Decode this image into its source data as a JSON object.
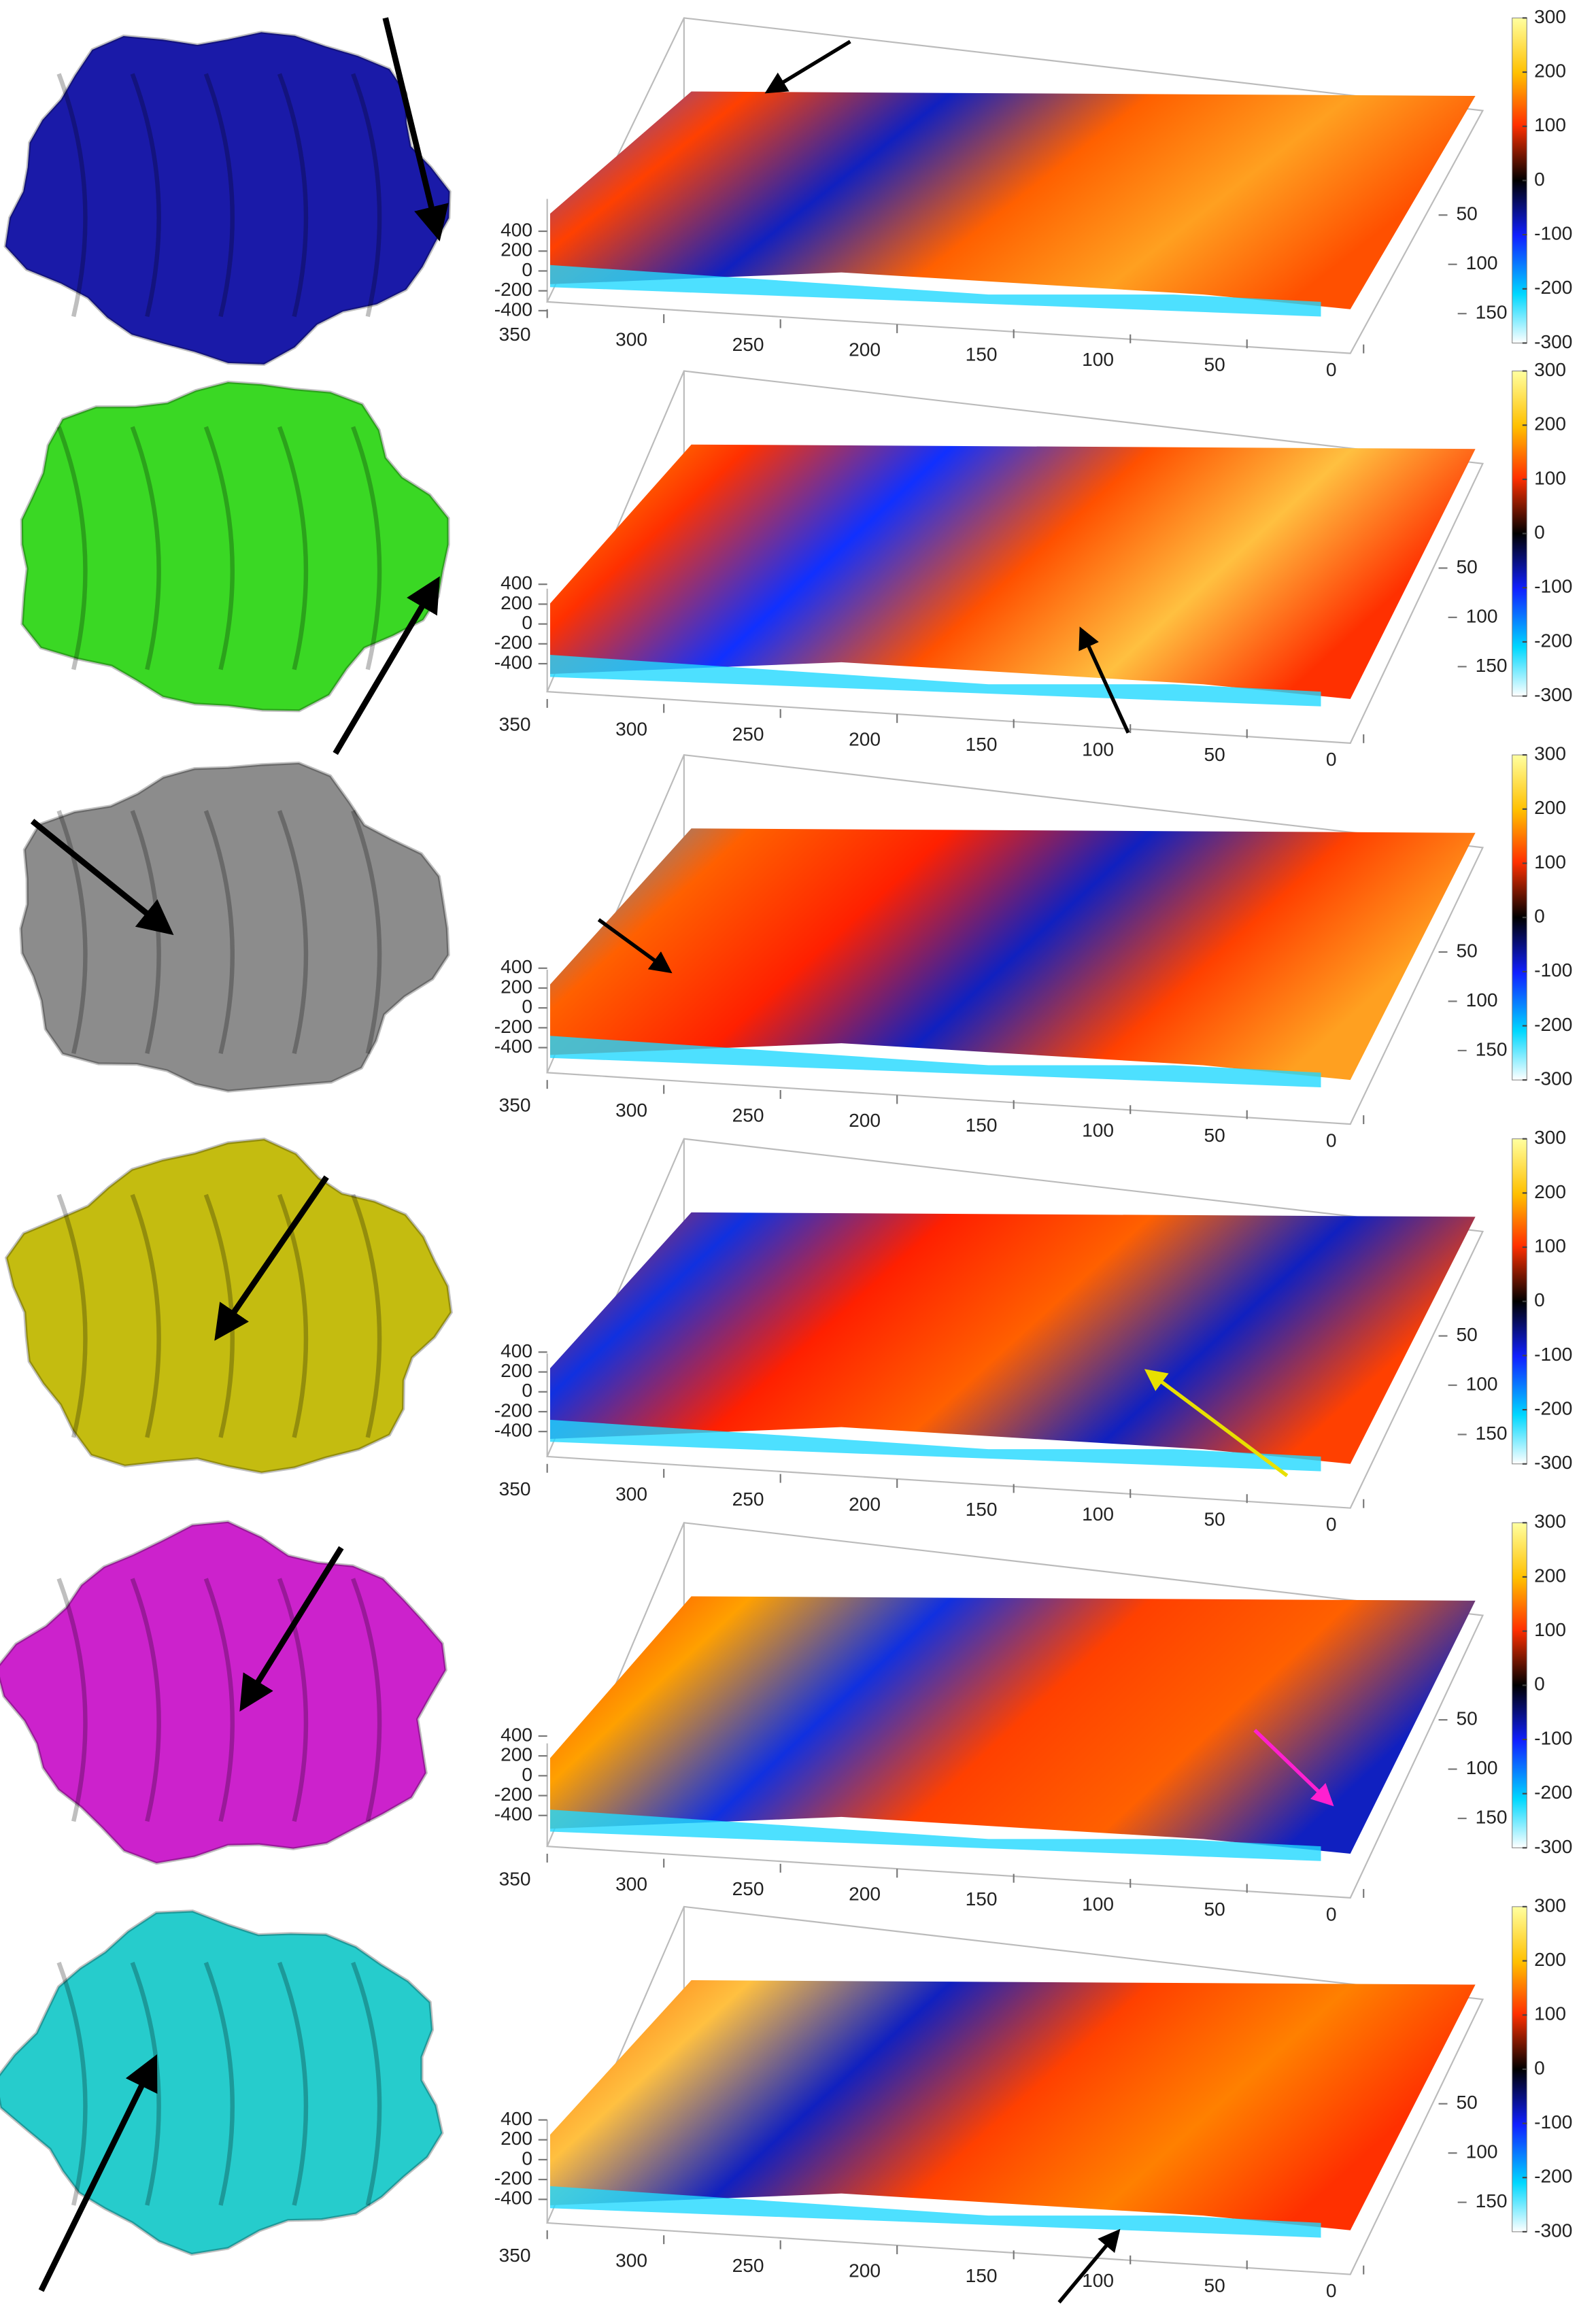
{
  "panels": [
    {
      "zticks": [
        400,
        200,
        0,
        -200,
        -400
      ],
      "xticks": [
        350,
        300,
        250,
        200,
        150,
        100,
        50,
        0
      ],
      "yticks": [
        50,
        100,
        150
      ],
      "colorbar_ticks": [
        300,
        200,
        100,
        0,
        -100,
        -200,
        -300
      ]
    },
    {
      "zticks": [
        400,
        200,
        0,
        -200,
        -400
      ],
      "xticks": [
        350,
        300,
        250,
        200,
        150,
        100,
        50,
        0
      ],
      "yticks": [
        50,
        100,
        150
      ],
      "colorbar_ticks": [
        300,
        200,
        100,
        0,
        -100,
        -200,
        -300
      ]
    },
    {
      "zticks": [
        400,
        200,
        0,
        -200,
        -400
      ],
      "xticks": [
        350,
        300,
        250,
        200,
        150,
        100,
        50,
        0
      ],
      "yticks": [
        50,
        100,
        150
      ],
      "colorbar_ticks": [
        300,
        200,
        100,
        0,
        -100,
        -200,
        -300
      ]
    },
    {
      "zticks": [
        400,
        200,
        0,
        -200,
        -400
      ],
      "xticks": [
        350,
        300,
        250,
        200,
        150,
        100,
        50,
        0
      ],
      "yticks": [
        50,
        100,
        150
      ],
      "colorbar_ticks": [
        300,
        200,
        100,
        0,
        -100,
        -200,
        -300
      ]
    },
    {
      "zticks": [
        400,
        200,
        0,
        -200,
        -400
      ],
      "xticks": [
        350,
        300,
        250,
        200,
        150,
        100,
        50,
        0
      ],
      "yticks": [
        50,
        100,
        150
      ],
      "colorbar_ticks": [
        300,
        200,
        100,
        0,
        -100,
        -200,
        -300
      ]
    },
    {
      "zticks": [
        400,
        200,
        0,
        -200,
        -400
      ],
      "xticks": [
        350,
        300,
        250,
        200,
        150,
        100,
        50,
        0
      ],
      "yticks": [
        50,
        100,
        150
      ],
      "colorbar_ticks": [
        300,
        200,
        100,
        0,
        -100,
        -200,
        -300
      ]
    }
  ]
}
